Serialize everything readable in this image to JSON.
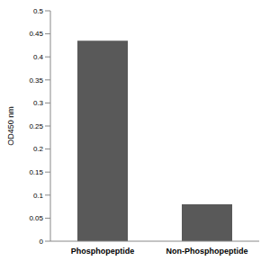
{
  "chart_data": {
    "type": "bar",
    "y_label": "OD450 nm",
    "categories": [
      "Phosphopeptide",
      "Non-Phosphopeptide"
    ],
    "values": [
      0.435,
      0.08
    ],
    "color": "#595959",
    "ylim": [
      0,
      0.5
    ],
    "yticks": [
      0,
      0.05,
      0.1,
      0.15,
      0.2,
      0.25,
      0.3,
      0.35,
      0.4,
      0.45,
      0.5
    ],
    "grid": false
  }
}
